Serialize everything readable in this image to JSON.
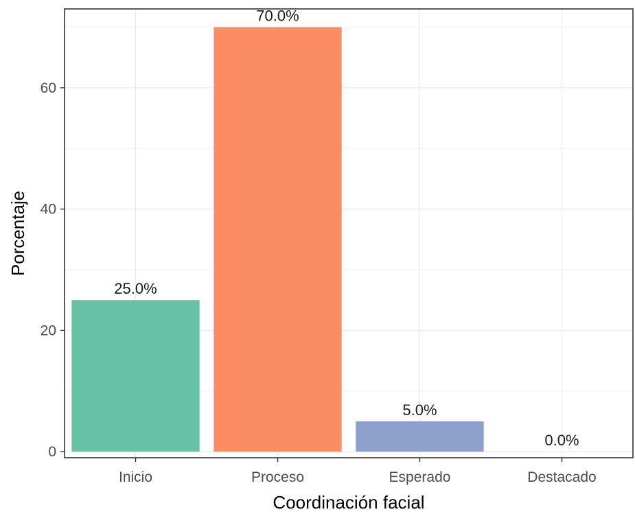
{
  "chart_data": {
    "type": "bar",
    "categories": [
      "Inicio",
      "Proceso",
      "Esperado",
      "Destacado"
    ],
    "values": [
      25.0,
      70.0,
      5.0,
      0.0
    ],
    "value_labels": [
      "25.0%",
      "70.0%",
      "5.0%",
      "0.0%"
    ],
    "colors": [
      "#66c2a5",
      "#fc8d62",
      "#8da0cb",
      "#e78ac3"
    ],
    "title": "",
    "xlabel": "Coordinación facial",
    "ylabel": "Porcentaje",
    "ylim": [
      -1,
      73
    ],
    "yticks": [
      0,
      20,
      40,
      60
    ],
    "ytick_labels": [
      "0",
      "20",
      "40",
      "60"
    ],
    "grid": true,
    "legend": "none"
  }
}
